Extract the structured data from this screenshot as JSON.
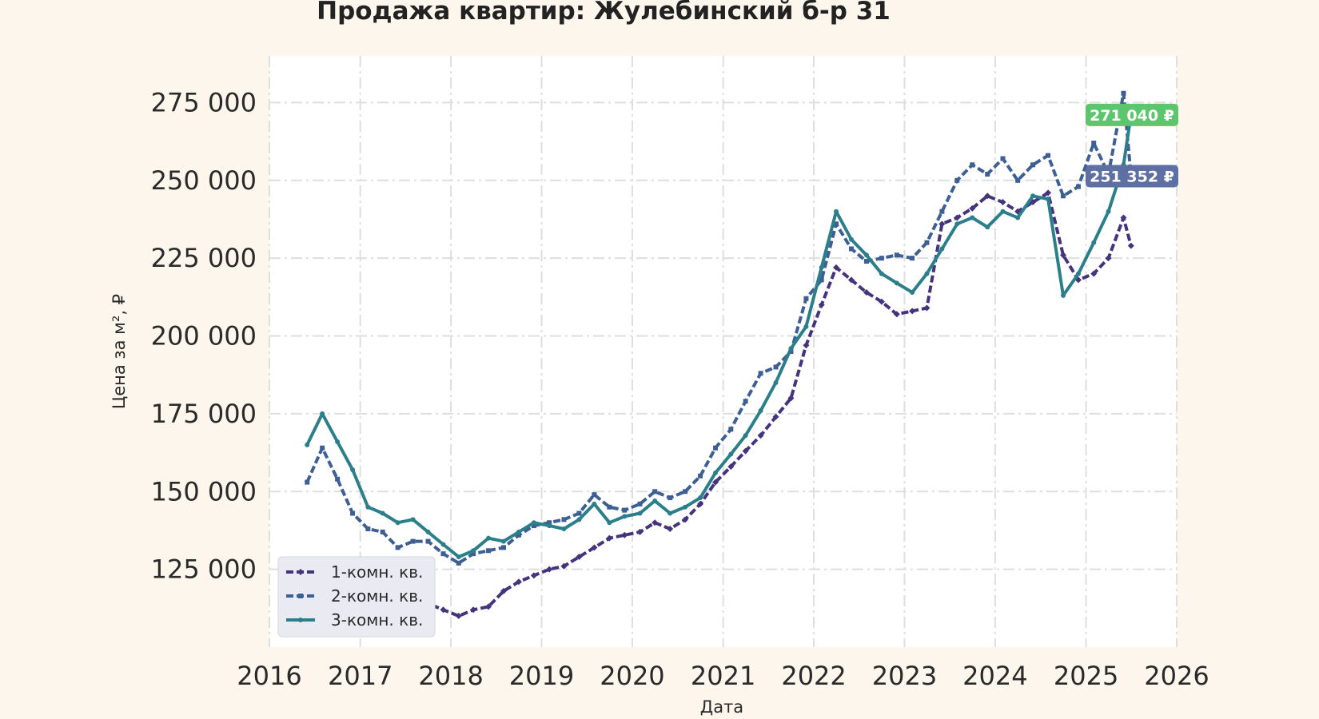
{
  "chart_data": {
    "type": "line",
    "title": "Продажа квартир: Жулебинский б-р 31",
    "xlabel": "Дата",
    "ylabel": "Цена за м², ₽",
    "xlim": [
      "2016-01-01",
      "2026-01-01"
    ],
    "ylim": [
      100000,
      290000
    ],
    "x_ticks": [
      "2016",
      "2017",
      "2018",
      "2019",
      "2020",
      "2021",
      "2022",
      "2023",
      "2024",
      "2025",
      "2026"
    ],
    "y_ticks": [
      125000,
      150000,
      175000,
      200000,
      225000,
      250000,
      275000
    ],
    "y_tick_labels": [
      "125 000",
      "150 000",
      "175 000",
      "200 000",
      "225 000",
      "250 000",
      "275 000"
    ],
    "grid": true,
    "legend_position": "lower-left",
    "series": [
      {
        "name": "1-комн. кв.",
        "color": "#45337d",
        "style": "dashed-diamond",
        "points": [
          [
            "2016-06-01",
            125000
          ],
          [
            "2016-08-01",
            126000
          ],
          [
            "2016-10-01",
            121000
          ],
          [
            "2016-12-01",
            120000
          ],
          [
            "2017-02-01",
            119000
          ],
          [
            "2017-04-01",
            118000
          ],
          [
            "2017-06-01",
            117000
          ],
          [
            "2017-08-01",
            116000
          ],
          [
            "2017-10-01",
            114000
          ],
          [
            "2017-12-01",
            112000
          ],
          [
            "2018-02-01",
            110000
          ],
          [
            "2018-04-01",
            112000
          ],
          [
            "2018-06-01",
            113000
          ],
          [
            "2018-08-01",
            118000
          ],
          [
            "2018-10-01",
            121000
          ],
          [
            "2018-12-01",
            123000
          ],
          [
            "2019-02-01",
            125000
          ],
          [
            "2019-04-01",
            126000
          ],
          [
            "2019-06-01",
            129000
          ],
          [
            "2019-08-01",
            132000
          ],
          [
            "2019-10-01",
            135000
          ],
          [
            "2019-12-01",
            136000
          ],
          [
            "2020-02-01",
            137000
          ],
          [
            "2020-04-01",
            140000
          ],
          [
            "2020-06-01",
            138000
          ],
          [
            "2020-08-01",
            141000
          ],
          [
            "2020-10-01",
            146000
          ],
          [
            "2020-12-01",
            153000
          ],
          [
            "2021-02-01",
            158000
          ],
          [
            "2021-04-01",
            163000
          ],
          [
            "2021-06-01",
            168000
          ],
          [
            "2021-08-01",
            174000
          ],
          [
            "2021-10-01",
            180000
          ],
          [
            "2021-12-01",
            197000
          ],
          [
            "2022-02-01",
            210000
          ],
          [
            "2022-04-01",
            222000
          ],
          [
            "2022-06-01",
            218000
          ],
          [
            "2022-08-01",
            214000
          ],
          [
            "2022-10-01",
            211000
          ],
          [
            "2022-12-01",
            207000
          ],
          [
            "2023-02-01",
            208000
          ],
          [
            "2023-04-01",
            209000
          ],
          [
            "2023-06-01",
            236000
          ],
          [
            "2023-08-01",
            238000
          ],
          [
            "2023-10-01",
            241000
          ],
          [
            "2023-12-01",
            245000
          ],
          [
            "2024-02-01",
            243000
          ],
          [
            "2024-04-01",
            240000
          ],
          [
            "2024-06-01",
            243000
          ],
          [
            "2024-08-01",
            246000
          ],
          [
            "2024-10-01",
            226000
          ],
          [
            "2024-12-01",
            218000
          ],
          [
            "2025-02-01",
            220000
          ],
          [
            "2025-04-01",
            225000
          ],
          [
            "2025-06-01",
            238000
          ],
          [
            "2025-07-01",
            229000
          ]
        ]
      },
      {
        "name": "2-комн. кв.",
        "color": "#3d5f94",
        "style": "dashed-square",
        "points": [
          [
            "2016-06-01",
            153000
          ],
          [
            "2016-08-01",
            164000
          ],
          [
            "2016-10-01",
            154000
          ],
          [
            "2016-12-01",
            143000
          ],
          [
            "2017-02-01",
            138000
          ],
          [
            "2017-04-01",
            137000
          ],
          [
            "2017-06-01",
            132000
          ],
          [
            "2017-08-01",
            134000
          ],
          [
            "2017-10-01",
            134000
          ],
          [
            "2017-12-01",
            130000
          ],
          [
            "2018-02-01",
            127000
          ],
          [
            "2018-04-01",
            130000
          ],
          [
            "2018-06-01",
            131000
          ],
          [
            "2018-08-01",
            132000
          ],
          [
            "2018-10-01",
            136000
          ],
          [
            "2018-12-01",
            139000
          ],
          [
            "2019-02-01",
            140000
          ],
          [
            "2019-04-01",
            141000
          ],
          [
            "2019-06-01",
            143000
          ],
          [
            "2019-08-01",
            149000
          ],
          [
            "2019-10-01",
            145000
          ],
          [
            "2019-12-01",
            144000
          ],
          [
            "2020-02-01",
            146000
          ],
          [
            "2020-04-01",
            150000
          ],
          [
            "2020-06-01",
            148000
          ],
          [
            "2020-08-01",
            150000
          ],
          [
            "2020-10-01",
            155000
          ],
          [
            "2020-12-01",
            164000
          ],
          [
            "2021-02-01",
            170000
          ],
          [
            "2021-04-01",
            179000
          ],
          [
            "2021-06-01",
            188000
          ],
          [
            "2021-08-01",
            190000
          ],
          [
            "2021-10-01",
            195000
          ],
          [
            "2021-12-01",
            212000
          ],
          [
            "2022-02-01",
            218000
          ],
          [
            "2022-04-01",
            236000
          ],
          [
            "2022-06-01",
            228000
          ],
          [
            "2022-08-01",
            224000
          ],
          [
            "2022-10-01",
            225000
          ],
          [
            "2022-12-01",
            226000
          ],
          [
            "2023-02-01",
            225000
          ],
          [
            "2023-04-01",
            230000
          ],
          [
            "2023-06-01",
            240000
          ],
          [
            "2023-08-01",
            250000
          ],
          [
            "2023-10-01",
            255000
          ],
          [
            "2023-12-01",
            252000
          ],
          [
            "2024-02-01",
            257000
          ],
          [
            "2024-04-01",
            250000
          ],
          [
            "2024-06-01",
            255000
          ],
          [
            "2024-08-01",
            258000
          ],
          [
            "2024-10-01",
            245000
          ],
          [
            "2024-12-01",
            248000
          ],
          [
            "2025-02-01",
            262000
          ],
          [
            "2025-04-01",
            252000
          ],
          [
            "2025-06-01",
            278000
          ],
          [
            "2025-07-01",
            251352
          ]
        ]
      },
      {
        "name": "3-комн. кв.",
        "color": "#2a7f8a",
        "style": "solid-dot",
        "points": [
          [
            "2016-06-01",
            165000
          ],
          [
            "2016-08-01",
            175000
          ],
          [
            "2016-10-01",
            166000
          ],
          [
            "2016-12-01",
            157000
          ],
          [
            "2017-02-01",
            145000
          ],
          [
            "2017-04-01",
            143000
          ],
          [
            "2017-06-01",
            140000
          ],
          [
            "2017-08-01",
            141000
          ],
          [
            "2017-10-01",
            137000
          ],
          [
            "2017-12-01",
            133000
          ],
          [
            "2018-02-01",
            129000
          ],
          [
            "2018-04-01",
            131000
          ],
          [
            "2018-06-01",
            135000
          ],
          [
            "2018-08-01",
            134000
          ],
          [
            "2018-10-01",
            137000
          ],
          [
            "2018-12-01",
            140000
          ],
          [
            "2019-02-01",
            139000
          ],
          [
            "2019-04-01",
            138000
          ],
          [
            "2019-06-01",
            141000
          ],
          [
            "2019-08-01",
            146000
          ],
          [
            "2019-10-01",
            140000
          ],
          [
            "2019-12-01",
            142000
          ],
          [
            "2020-02-01",
            143000
          ],
          [
            "2020-04-01",
            147000
          ],
          [
            "2020-06-01",
            143000
          ],
          [
            "2020-08-01",
            145000
          ],
          [
            "2020-10-01",
            148000
          ],
          [
            "2020-12-01",
            156000
          ],
          [
            "2021-02-01",
            162000
          ],
          [
            "2021-04-01",
            168000
          ],
          [
            "2021-06-01",
            176000
          ],
          [
            "2021-08-01",
            185000
          ],
          [
            "2021-10-01",
            196000
          ],
          [
            "2021-12-01",
            203000
          ],
          [
            "2022-02-01",
            222000
          ],
          [
            "2022-04-01",
            240000
          ],
          [
            "2022-06-01",
            231000
          ],
          [
            "2022-08-01",
            226000
          ],
          [
            "2022-10-01",
            220000
          ],
          [
            "2022-12-01",
            217000
          ],
          [
            "2023-02-01",
            214000
          ],
          [
            "2023-04-01",
            220000
          ],
          [
            "2023-06-01",
            228000
          ],
          [
            "2023-08-01",
            236000
          ],
          [
            "2023-10-01",
            238000
          ],
          [
            "2023-12-01",
            235000
          ],
          [
            "2024-02-01",
            240000
          ],
          [
            "2024-04-01",
            238000
          ],
          [
            "2024-06-01",
            245000
          ],
          [
            "2024-08-01",
            244000
          ],
          [
            "2024-10-01",
            213000
          ],
          [
            "2024-12-01",
            220000
          ],
          [
            "2025-02-01",
            230000
          ],
          [
            "2025-04-01",
            240000
          ],
          [
            "2025-06-01",
            255000
          ],
          [
            "2025-07-01",
            271040
          ]
        ]
      }
    ],
    "annotations": [
      {
        "text": "271 040 ₽",
        "series": "3-комн. кв.",
        "value": 271040,
        "color": "#5cc56d"
      },
      {
        "text": "251 352 ₽",
        "series": "2-комн. кв.",
        "value": 251352,
        "color": "#5d6fa3"
      }
    ]
  }
}
